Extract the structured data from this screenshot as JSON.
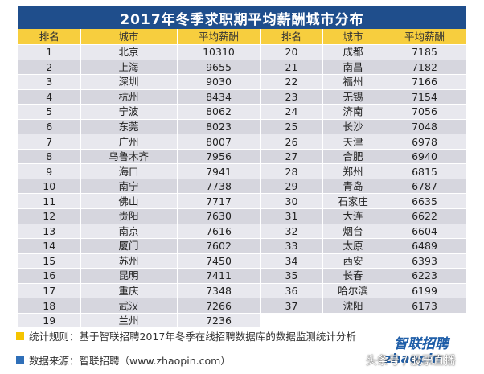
{
  "title": "2017年冬季求职期平均薪酬城市分布",
  "headers": {
    "rank": "排名",
    "city": "城市",
    "salary": "平均薪酬"
  },
  "left": [
    {
      "rank": "1",
      "city": "北京",
      "salary": "10310"
    },
    {
      "rank": "2",
      "city": "上海",
      "salary": "9655"
    },
    {
      "rank": "3",
      "city": "深圳",
      "salary": "9030"
    },
    {
      "rank": "4",
      "city": "杭州",
      "salary": "8434"
    },
    {
      "rank": "5",
      "city": "宁波",
      "salary": "8062"
    },
    {
      "rank": "6",
      "city": "东莞",
      "salary": "8023"
    },
    {
      "rank": "7",
      "city": "广州",
      "salary": "8007"
    },
    {
      "rank": "8",
      "city": "乌鲁木齐",
      "salary": "7956"
    },
    {
      "rank": "9",
      "city": "海口",
      "salary": "7941"
    },
    {
      "rank": "10",
      "city": "南宁",
      "salary": "7738"
    },
    {
      "rank": "11",
      "city": "佛山",
      "salary": "7717"
    },
    {
      "rank": "12",
      "city": "贵阳",
      "salary": "7630"
    },
    {
      "rank": "13",
      "city": "南京",
      "salary": "7616"
    },
    {
      "rank": "14",
      "city": "厦门",
      "salary": "7602"
    },
    {
      "rank": "15",
      "city": "苏州",
      "salary": "7450"
    },
    {
      "rank": "16",
      "city": "昆明",
      "salary": "7411"
    },
    {
      "rank": "17",
      "city": "重庆",
      "salary": "7348"
    },
    {
      "rank": "18",
      "city": "武汉",
      "salary": "7266"
    },
    {
      "rank": "19",
      "city": "兰州",
      "salary": "7236"
    }
  ],
  "right": [
    {
      "rank": "20",
      "city": "成都",
      "salary": "7185"
    },
    {
      "rank": "21",
      "city": "南昌",
      "salary": "7182"
    },
    {
      "rank": "22",
      "city": "福州",
      "salary": "7166"
    },
    {
      "rank": "23",
      "city": "无锡",
      "salary": "7154"
    },
    {
      "rank": "24",
      "city": "济南",
      "salary": "7056"
    },
    {
      "rank": "25",
      "city": "长沙",
      "salary": "7048"
    },
    {
      "rank": "26",
      "city": "天津",
      "salary": "6978"
    },
    {
      "rank": "27",
      "city": "合肥",
      "salary": "6940"
    },
    {
      "rank": "28",
      "city": "郑州",
      "salary": "6815"
    },
    {
      "rank": "29",
      "city": "青岛",
      "salary": "6787"
    },
    {
      "rank": "30",
      "city": "石家庄",
      "salary": "6635"
    },
    {
      "rank": "31",
      "city": "大连",
      "salary": "6622"
    },
    {
      "rank": "32",
      "city": "烟台",
      "salary": "6604"
    },
    {
      "rank": "33",
      "city": "太原",
      "salary": "6489"
    },
    {
      "rank": "34",
      "city": "西安",
      "salary": "6393"
    },
    {
      "rank": "35",
      "city": "长春",
      "salary": "6223"
    },
    {
      "rank": "36",
      "city": "哈尔滨",
      "salary": "6199"
    },
    {
      "rank": "37",
      "city": "沈阳",
      "salary": "6173"
    }
  ],
  "footer": {
    "rule": "统计规则：基于智联招聘2017年冬季在线招聘数据库的数据监测统计分析",
    "source": "数据来源：智联招聘（www.zhaopin.com）"
  },
  "logo": {
    "name": "智联招聘",
    "domain": "zhaopin"
  },
  "watermark": "头条号 / 股票直播",
  "colors": {
    "title_bg": "#1f4e8c",
    "header_bg": "#f7ce3e",
    "row_light": "#e8e8ee",
    "row_dark": "#d6d6de",
    "bullet_yellow": "#f5c400",
    "bullet_blue": "#2f6fb8"
  }
}
